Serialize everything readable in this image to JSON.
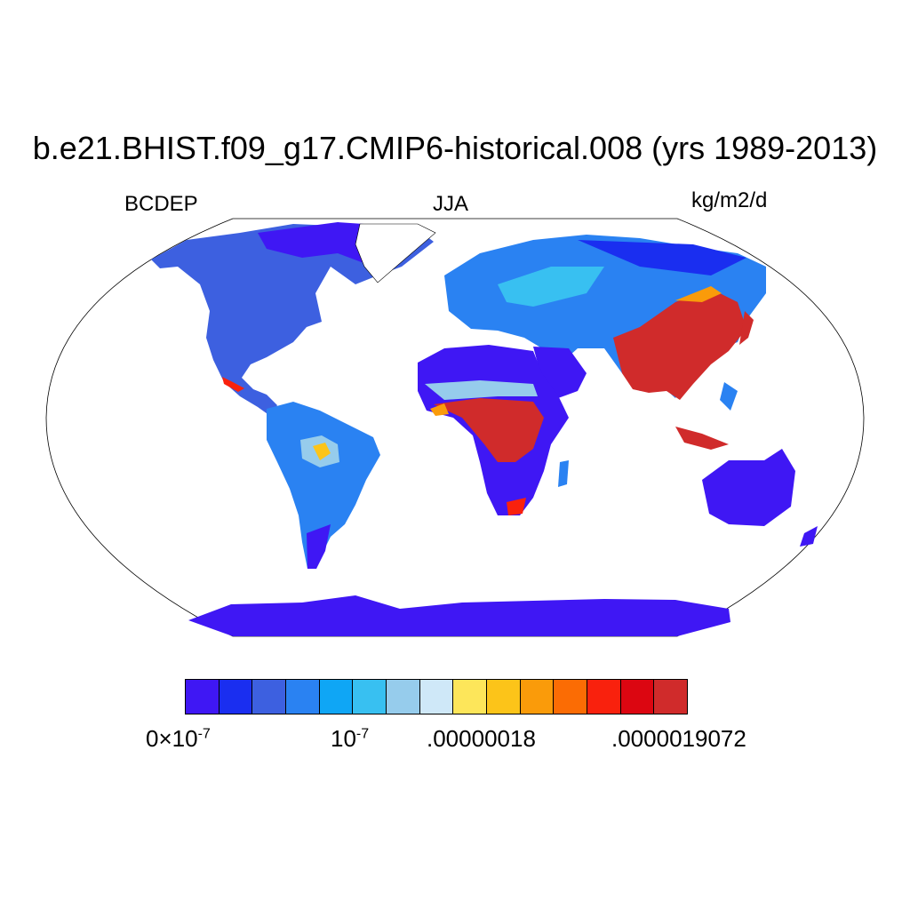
{
  "header": {
    "title": "b.e21.BHIST.f09_g17.CMIP6-historical.008 (yrs 1989-2013)",
    "left": "BCDEP",
    "center": "JJA",
    "right": "kg/m2/d"
  },
  "colorbar": {
    "colors": [
      "#3f17f4",
      "#1a2ef0",
      "#3d60e0",
      "#2a82f2",
      "#0fa6f5",
      "#38c0f1",
      "#96ccec",
      "#cfe8f8",
      "#fde65a",
      "#fcc419",
      "#fa9b0a",
      "#fb6c04",
      "#f9210d",
      "#dc0611",
      "#d02b2b"
    ],
    "labels": {
      "zero_base": "0×10",
      "zero_exp": "-7",
      "ten_base": "10",
      "ten_exp": "-7",
      "mid": ".00000018",
      "max": ".0000019072"
    }
  },
  "map": {
    "projection": "robinson",
    "variable_colors": {
      "ocean": "#ffffff",
      "low": "#3f17f4",
      "mid": "#2a82f2",
      "high": "#d02b2b",
      "warm": "#fcc419"
    }
  }
}
